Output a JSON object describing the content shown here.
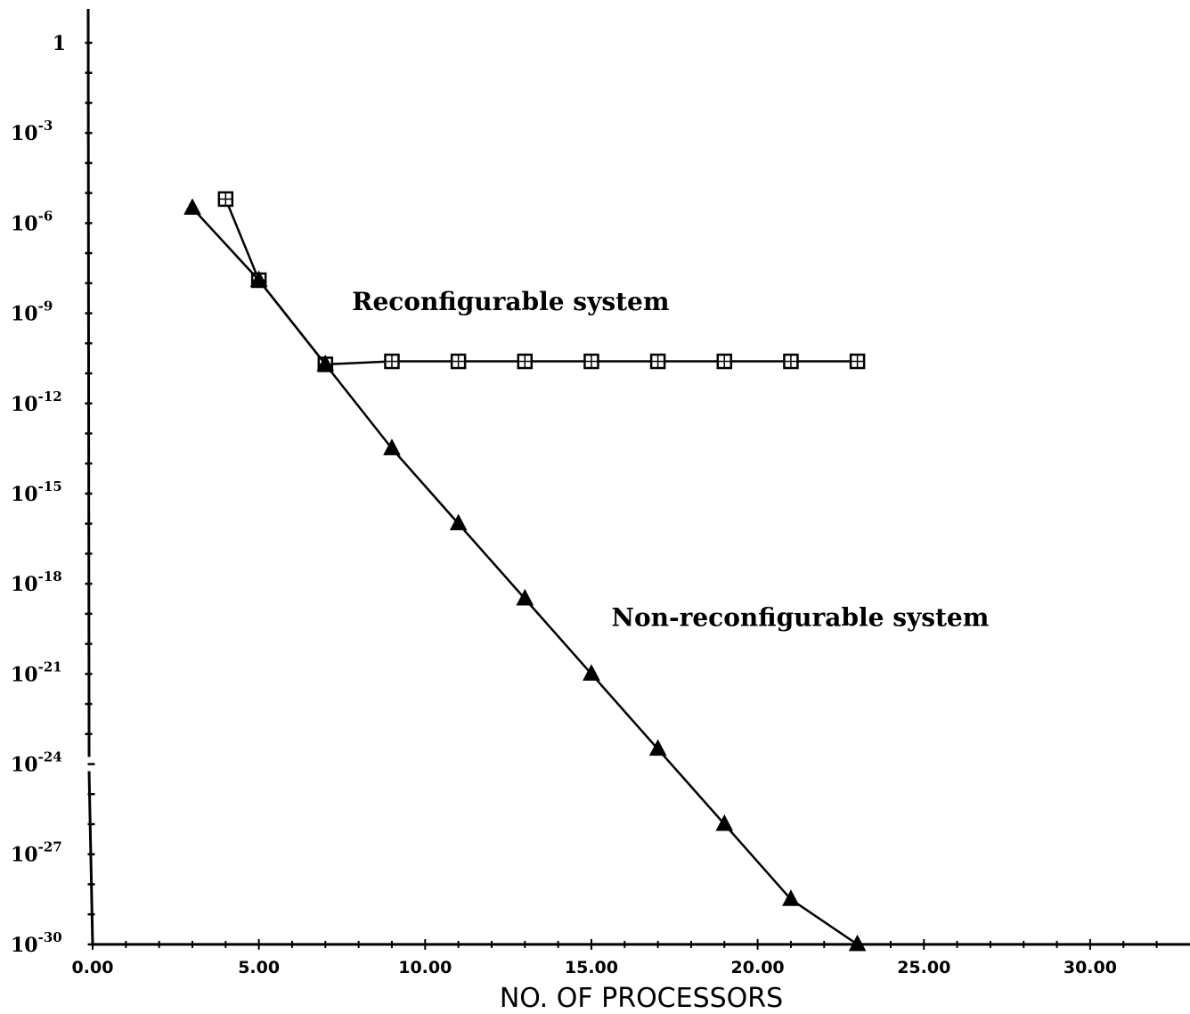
{
  "chart_data": {
    "type": "line",
    "title": "",
    "xlabel": "NO. OF PROCESSORS",
    "ylabel": "",
    "xlim": [
      0,
      30
    ],
    "ylim_log10": [
      -30,
      0
    ],
    "y_scale": "log",
    "grid": false,
    "x_tick_labels": [
      {
        "value": 0,
        "label": "0.00"
      },
      {
        "value": 5,
        "label": "5.00"
      },
      {
        "value": 10,
        "label": "10.00"
      },
      {
        "value": 15,
        "label": "15.00"
      },
      {
        "value": 20,
        "label": "20.00"
      },
      {
        "value": 25,
        "label": "25.00"
      },
      {
        "value": 30,
        "label": "30.00"
      }
    ],
    "y_tick_labels": [
      {
        "exp": 0,
        "base": "1",
        "sup": ""
      },
      {
        "exp": -3,
        "base": "10",
        "sup": "-3"
      },
      {
        "exp": -6,
        "base": "10",
        "sup": "-6"
      },
      {
        "exp": -9,
        "base": "10",
        "sup": "-9"
      },
      {
        "exp": -12,
        "base": "10",
        "sup": "-12"
      },
      {
        "exp": -15,
        "base": "10",
        "sup": "-15"
      },
      {
        "exp": -18,
        "base": "10",
        "sup": "-18"
      },
      {
        "exp": -21,
        "base": "10",
        "sup": "-21"
      },
      {
        "exp": -24,
        "base": "10",
        "sup": "-24"
      },
      {
        "exp": -27,
        "base": "10",
        "sup": "-27"
      },
      {
        "exp": -30,
        "base": "10",
        "sup": "-30"
      }
    ],
    "series": [
      {
        "label": "Reconfigurable system",
        "marker": "square",
        "x": [
          4,
          5,
          7,
          9,
          11,
          13,
          15,
          17,
          19,
          21,
          23
        ],
        "y_log10": [
          -5.2,
          -7.9,
          -10.7,
          -10.6,
          -10.6,
          -10.6,
          -10.6,
          -10.6,
          -10.6,
          -10.6,
          -10.6
        ]
      },
      {
        "label": "Non-reconfigurable system",
        "marker": "triangle",
        "x": [
          3,
          5,
          7,
          9,
          11,
          13,
          15,
          17,
          19,
          21,
          23
        ],
        "y_log10": [
          -5.5,
          -7.9,
          -10.7,
          -13.5,
          -16.0,
          -18.5,
          -21.0,
          -23.5,
          -26.0,
          -28.5,
          -30.0
        ]
      }
    ],
    "annotations": [
      {
        "text": "Reconfigurable system",
        "x": 7.8,
        "y_log10": -8.9
      },
      {
        "text": "Non-reconfigurable system",
        "x": 15.6,
        "y_log10": -19.4
      }
    ]
  }
}
